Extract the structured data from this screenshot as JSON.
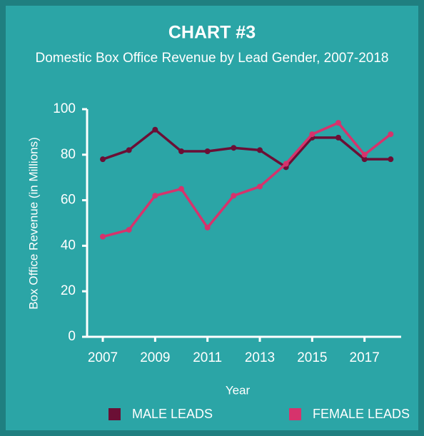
{
  "chart_data": {
    "type": "line",
    "title": "CHART #3",
    "subtitle": "Domestic Box Office Revenue by Lead Gender, 2007-2018",
    "x_label": "Year",
    "y_label": "Box Office Revenue (in Millions)",
    "x": [
      2007,
      2008,
      2009,
      2010,
      2011,
      2012,
      2013,
      2014,
      2015,
      2016,
      2017,
      2018
    ],
    "series": [
      {
        "name": "MALE LEADS",
        "color": "#6b0f35",
        "values": [
          78,
          82,
          91,
          81.5,
          81.5,
          83,
          82,
          74.5,
          87.5,
          87.5,
          78,
          78
        ]
      },
      {
        "name": "FEMALE LEADS",
        "color": "#d6336c",
        "values": [
          44,
          47,
          62,
          65,
          48,
          62,
          66,
          76,
          89,
          94,
          80,
          89
        ]
      }
    ],
    "xlim": [
      2006.4,
      2018.4
    ],
    "xticks": [
      2007,
      2009,
      2011,
      2013,
      2015,
      2017
    ],
    "ylim": [
      0,
      100
    ],
    "yticks": [
      0,
      20,
      40,
      60,
      80,
      100
    ],
    "grid": false,
    "legend": "bottom"
  }
}
